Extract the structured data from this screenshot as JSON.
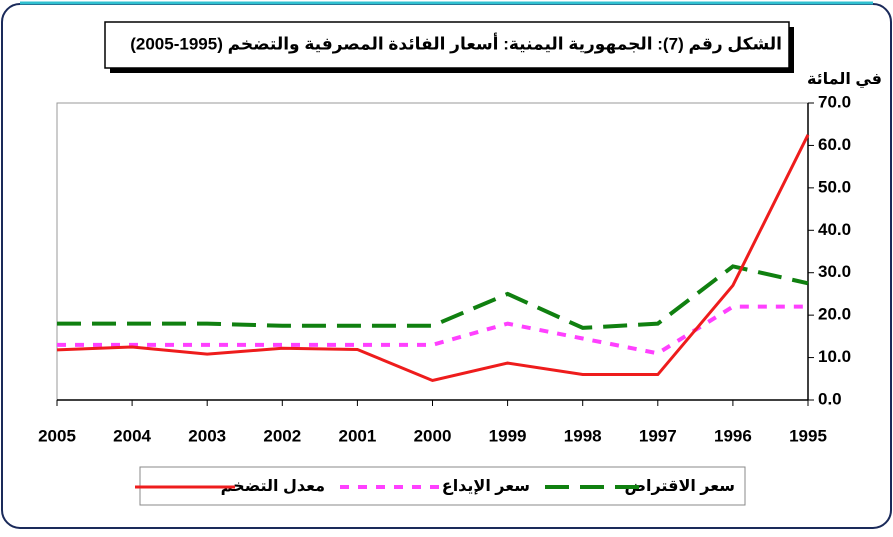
{
  "chart_data": {
    "type": "line",
    "title": "الشكل رقم (7): الجمهورية اليمنية: أسعار الفائدة المصرفية والتضخم (1995-2005)",
    "y_label": "في المائة",
    "categories": [
      "2005",
      "2004",
      "2003",
      "2002",
      "2001",
      "2000",
      "1999",
      "1998",
      "1997",
      "1996",
      "1995"
    ],
    "series": [
      {
        "name": "سعر الاقتراض",
        "color": "#108010",
        "dash": "dashed",
        "values": [
          18,
          18,
          18,
          17.5,
          17.5,
          17.5,
          25,
          17,
          18,
          31.5,
          27.5
        ]
      },
      {
        "name": "سعر الإيداع",
        "color": "#ff40ff",
        "dash": "dotted",
        "values": [
          13,
          13,
          13,
          13,
          13,
          13,
          18,
          14.5,
          11,
          22,
          22
        ]
      },
      {
        "name": "معدل التضخم",
        "color": "#ee1c1c",
        "dash": "solid",
        "values": [
          11.8,
          12.5,
          10.8,
          12.2,
          11.9,
          4.6,
          8.7,
          6,
          6,
          27,
          62.5
        ]
      }
    ],
    "ylim": [
      0,
      70
    ],
    "yticks": [
      {
        "value": 0,
        "label": "0.0"
      },
      {
        "value": 10,
        "label": "10.0"
      },
      {
        "value": 20,
        "label": "20.0"
      },
      {
        "value": 30,
        "label": "30.0"
      },
      {
        "value": 40,
        "label": "40.0"
      },
      {
        "value": 50,
        "label": "50.0"
      },
      {
        "value": 60,
        "label": "60.0"
      },
      {
        "value": 70,
        "label": "70.0"
      }
    ],
    "grid": false
  }
}
